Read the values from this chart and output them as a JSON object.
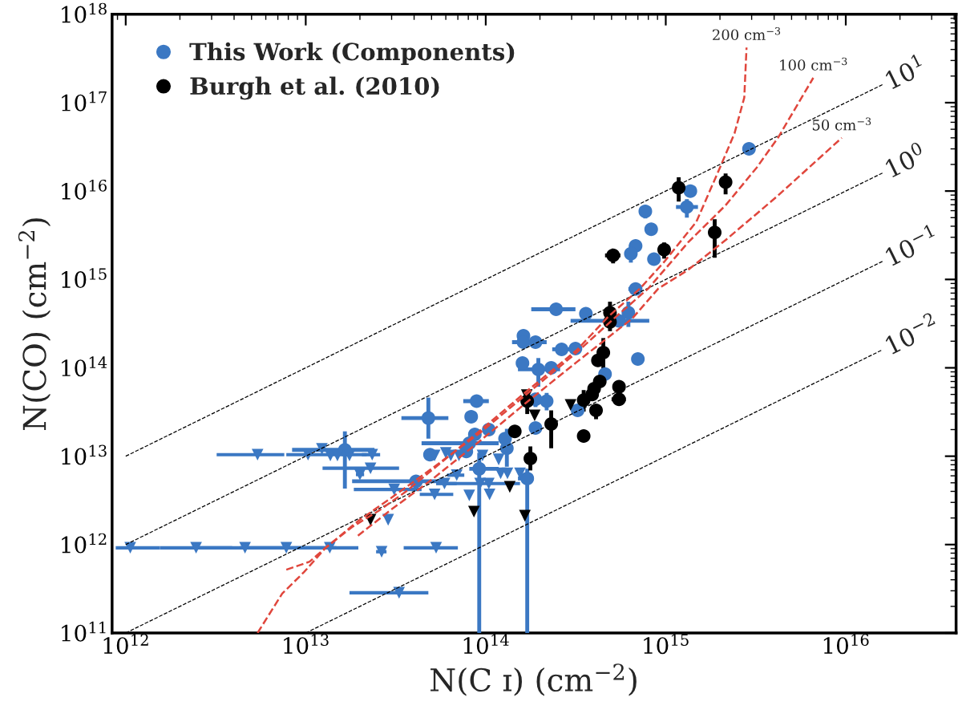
{
  "chart_data": {
    "type": "scatter",
    "xlabel": "N(C ɪ) (cm$^{−2}$)",
    "ylabel": "N(CO) (cm$^{−2}$)",
    "log": "xy",
    "grid": false,
    "legend": "top left",
    "annotations": [
      {
        "text": "10$^{1}$",
        "x": 1.6e+16,
        "y": 1.6e+17
      },
      {
        "text": "10$^{0}$",
        "x": 1.6e+16,
        "y": 1.6e+16
      },
      {
        "text": "10$^{−1}$",
        "x": 1.6e+16,
        "y": 1600000000000000.0
      },
      {
        "text": "10$^{−2}$",
        "x": 1.6e+16,
        "y": 160000000000000.0
      },
      {
        "text": "200 cm$^{−3}$",
        "x": 2810000000000000.0,
        "y": 4.2e+17
      },
      {
        "text": "100 cm$^{−3}$",
        "x": 6600000000000000.0,
        "y": 1.91e+17
      },
      {
        "text": "50 cm$^{−3}$",
        "x": 9500000000000000.0,
        "y": 4e+16
      }
    ],
    "xlim": [
      840000000000.0,
      4.1e+16
    ],
    "ylim": [
      100000000000.0,
      1e+18
    ],
    "xticks": [
      {
        "value": 1000000000000.0,
        "label": "10$^{12}$"
      },
      {
        "value": 10000000000000.0,
        "label": "10$^{13}$"
      },
      {
        "value": 100000000000000.0,
        "label": "10$^{14}$"
      },
      {
        "value": 1000000000000000.0,
        "label": "10$^{15}$"
      },
      {
        "value": 1e+16,
        "label": "10$^{16}$"
      }
    ],
    "yticks": [
      {
        "value": 100000000000.0,
        "label": "10$^{11}$"
      },
      {
        "value": 1000000000000.0,
        "label": "10$^{12}$"
      },
      {
        "value": 10000000000000.0,
        "label": "10$^{13}$"
      },
      {
        "value": 100000000000000.0,
        "label": "10$^{14}$"
      },
      {
        "value": 1000000000000000.0,
        "label": "10$^{15}$"
      },
      {
        "value": 1e+16,
        "label": "10$^{16}$"
      },
      {
        "value": 1e+17,
        "label": "10$^{17}$"
      },
      {
        "value": 1e+18,
        "label": "10$^{18}$"
      }
    ],
    "series": [
      {
        "type": "line",
        "color": "#000000",
        "line_style": "dashed",
        "marker": "none",
        "x": [
          1000000000000.0,
          1.6e+16
        ],
        "values": [
          10000000000000.0,
          1.6e+17
        ]
      },
      {
        "type": "line",
        "color": "#000000",
        "line_style": "dashed",
        "marker": "none",
        "x": [
          1000000000000.0,
          1.6e+16
        ],
        "values": [
          1000000000000.0,
          1.6e+16
        ]
      },
      {
        "type": "line",
        "color": "#000000",
        "line_style": "dashed",
        "marker": "none",
        "x": [
          1000000000000.0,
          1.6e+16
        ],
        "values": [
          100000000000.0,
          1600000000000000.0
        ]
      },
      {
        "type": "line",
        "color": "#000000",
        "line_style": "dashed",
        "marker": "none",
        "x": [
          10000000000000.0,
          1.6e+16
        ],
        "values": [
          100000000000.0,
          160000000000000.0
        ]
      },
      {
        "type": "line",
        "color": "#e0463c",
        "line_style": "dashed",
        "marker": "none",
        "x": [
          5400000000000.0,
          7400000000000.0,
          9800000000000.0,
          12900000000000.0,
          18100000000000.0,
          25400000000000.0,
          36000000000000.0,
          50000000000000.0,
          93000000000000.0,
          172000000000000.0,
          320000000000000.0,
          480000000000000.0,
          720000000000000.0,
          980000000000000.0,
          1480000000000000.0,
          2000000000000000.0,
          2410000000000000.0,
          2730000000000000.0,
          2810000000000000.0
        ],
        "values": [
          100000000000.0,
          279000000000.0,
          490000000000.0,
          920000000000.0,
          1580000000000.0,
          2410000000000.0,
          3980000000000.0,
          6900000000000.0,
          19500000000000.0,
          56000000000000.0,
          158000000000000.0,
          380000000000000.0,
          790000000000000.0,
          1580000000000000.0,
          4500000000000000.0,
          1.84e+16,
          4.5e+16,
          1.14e+17,
          4.2e+17
        ]
      },
      {
        "type": "line",
        "color": "#e0463c",
        "line_style": "dashed",
        "marker": "none",
        "x": [
          7800000000000.0,
          10500000000000.0,
          12900000000000.0,
          19500000000000.0,
          30000000000000.0,
          50000000000000.0,
          93000000000000.0,
          172000000000000.0,
          320000000000000.0,
          530000000000000.0,
          800000000000000.0,
          1330000000000000.0,
          2150000000000000.0,
          3200000000000000.0,
          4200000000000000.0,
          6600000000000000.0
        ],
        "values": [
          520000000000.0,
          640000000000.0,
          920000000000.0,
          1840000000000.0,
          3400000000000.0,
          7200000000000.0,
          18400000000000.0,
          52000000000000.0,
          149000000000000.0,
          380000000000000.0,
          790000000000000.0,
          2620000000000000.0,
          6900000000000000.0,
          1.84e+16,
          4e+16,
          1.91e+17
        ]
      },
      {
        "type": "line",
        "color": "#e0463c",
        "line_style": "dashed",
        "marker": "none",
        "x": [
          19500000000000.0,
          30000000000000.0,
          50000000000000.0,
          93000000000000.0,
          172000000000000.0,
          320000000000000.0,
          650000000000000.0,
          910000000000000.0,
          1330000000000000.0,
          2150000000000000.0,
          4100000000000000.0,
          9500000000000000.0
        ],
        "values": [
          1260000000000.0,
          2510000000000.0,
          5400000000000.0,
          14900000000000.0,
          42000000000000.0,
          116000000000000.0,
          360000000000000.0,
          790000000000000.0,
          1280000000000000.0,
          2790000000000000.0,
          8500000000000000.0,
          4e+16
        ]
      },
      {
        "name": "This Work (Components)",
        "color": "#3b78c3",
        "marker": "circle",
        "x": [
          2900000000000000.0,
          1370000000000000.0,
          1310000000000000.0,
          770000000000000.0,
          830000000000000.0,
          680000000000000.0,
          640000000000000.0,
          860000000000000.0,
          680000000000000.0,
          246000000000000.0,
          360000000000000.0,
          550000000000000.0,
          620000000000000.0,
          162000000000000.0,
          162000000000000.0,
          189000000000000.0,
          264000000000000.0,
          315000000000000.0,
          160000000000000.0,
          196000000000000.0,
          231000000000000.0,
          700000000000000.0,
          460000000000000.0,
          324000000000000.0,
          189000000000000.0,
          218000000000000.0,
          189000000000000.0,
          89000000000000.0,
          83000000000000.0,
          48000000000000.0,
          104000000000000.0,
          87000000000000.0,
          131000000000000.0,
          128000000000000.0,
          81000000000000.0,
          78000000000000.0,
          49000000000000.0,
          92000000000000.0,
          41000000000000.0,
          170000000000000.0,
          16500000000000.0
        ],
        "values": [
          3e+16,
          1e+16,
          6600000000000000.0,
          5900000000000000.0,
          3700000000000000.0,
          2400000000000000.0,
          1950000000000000.0,
          1700000000000000.0,
          780000000000000.0,
          460000000000000.0,
          410000000000000.0,
          340000000000000.0,
          420000000000000.0,
          230000000000000.0,
          195000000000000.0,
          195000000000000.0,
          162000000000000.0,
          165000000000000.0,
          113000000000000.0,
          96000000000000.0,
          100000000000000.0,
          126000000000000.0,
          85000000000000.0,
          33000000000000.0,
          44000000000000.0,
          42000000000000.0,
          20800000000000.0,
          42000000000000.0,
          28000000000000.0,
          27000000000000.0,
          20000000000000.0,
          17600000000000.0,
          12300000000000.0,
          15800000000000.0,
          14000000000000.0,
          11300000000000.0,
          10400000000000.0,
          7200000000000.0,
          5200000000000.0,
          5600000000000.0,
          11800000000000.0
        ],
        "xerrors": [
          null,
          null,
          [
            1140000000000000.0,
            1510000000000000.0
          ],
          null,
          null,
          null,
          null,
          null,
          [
            620000000000000.0,
            740000000000000.0
          ],
          [
            179000000000000.0,
            315000000000000.0
          ],
          null,
          [
            296000000000000.0,
            810000000000000.0
          ],
          null,
          null,
          null,
          [
            140000000000000.0,
            218000000000000.0
          ],
          [
            234000000000000.0,
            296000000000000.0
          ],
          null,
          null,
          [
            151000000000000.0,
            259000000000000.0
          ],
          null,
          null,
          null,
          null,
          null,
          null,
          null,
          [
            75000000000000.0,
            104000000000000.0
          ],
          null,
          [
            34000000000000.0,
            62000000000000.0
          ],
          null,
          null,
          null,
          null,
          [
            44000000000000.0,
            118000000000000.0
          ],
          null,
          null,
          [
            81000000000000.0,
            118000000000000.0
          ],
          [
            18100000000000.0,
            60000000000000.0
          ],
          [
            151000000000000.0,
            185000000000000.0
          ],
          [
            8400000000000.0,
            24100000000000.0
          ]
        ],
        "errors": [
          null,
          null,
          [
            5000000000000000.0,
            8100000000000000.0
          ],
          [
            4900000000000000.0,
            6900000000000000.0
          ],
          null,
          null,
          [
            1550000000000000.0,
            2450000000000000.0
          ],
          null,
          null,
          null,
          null,
          null,
          [
            290000000000000.0,
            560000000000000.0
          ],
          null,
          null,
          null,
          null,
          null,
          null,
          [
            61000000000000.0,
            129000000000000.0
          ],
          null,
          null,
          null,
          null,
          [
            36000000000000.0,
            52000000000000.0
          ],
          [
            33000000000000.0,
            52000000000000.0
          ],
          null,
          null,
          null,
          [
            15800000000000.0,
            46000000000000.0
          ],
          null,
          null,
          [
            7600000000000.0,
            20400000000000.0
          ],
          null,
          null,
          null,
          null,
          [
            100000000000.0,
            10900000000000.0
          ],
          null,
          [
            100000000000.0,
            7200000000000.0
          ],
          [
            4300000000000.0,
            19100000000000.0
          ]
        ]
      },
      {
        "color": "#3b78c3",
        "marker": "triangle",
        "x": [
          5400000000000.0,
          10300000000000.0,
          12300000000000.0,
          13700000000000.0,
          15000000000000.0,
          23400000000000.0,
          22900000000000.0,
          20000000000000.0,
          31000000000000.0,
          28700000000000.0,
          1060000000000.0,
          2460000000000.0,
          4600000000000.0,
          7800000000000.0,
          13600000000000.0,
          26400000000000.0,
          53000000000000.0,
          33000000000000.0,
          52000000000000.0,
          59000000000000.0,
          69000000000000.0,
          52000000000000.0,
          60000000000000.0,
          64000000000000.0,
          71000000000000.0,
          96000000000000.0,
          118000000000000.0,
          121000000000000.0,
          132000000000000.0,
          155000000000000.0,
          104000000000000.0,
          105000000000000.0,
          81000000000000.0,
          93000000000000.0,
          17500000000000.0
        ],
        "values": [
          10400000000000.0,
          10400000000000.0,
          12100000000000.0,
          10200000000000.0,
          10200000000000.0,
          10400000000000.0,
          7300000000000.0,
          6200000000000.0,
          4200000000000.0,
          1910000000000.0,
          920000000000.0,
          920000000000.0,
          920000000000.0,
          920000000000.0,
          920000000000.0,
          830000000000.0,
          920000000000.0,
          285000000000.0,
          3700000000000.0,
          4900000000000.0,
          6100000000000.0,
          10200000000000.0,
          10900000000000.0,
          10200000000000.0,
          10200000000000.0,
          10200000000000.0,
          9200000000000.0,
          6400000000000.0,
          6400000000000.0,
          6400000000000.0,
          4900000000000.0,
          3700000000000.0,
          3600000000000.0,
          4900000000000.0,
          10200000000000.0
        ],
        "xerrors": [
          [
            3200000000000.0,
            7600000000000.0
          ],
          [
            7800000000000.0,
            21800000000000.0
          ],
          null,
          null,
          null,
          [
            20500000000000.0,
            25900000000000.0
          ],
          [
            12400000000000.0,
            33000000000000.0
          ],
          [
            19000000000000.0,
            21100000000000.0
          ],
          [
            18500000000000.0,
            44000000000000.0
          ],
          null,
          [
            880000000000.0,
            1550000000000.0
          ],
          [
            1550000000000.0,
            3900000000000.0
          ],
          [
            2590000000000.0,
            8000000000000.0
          ],
          [
            4300000000000.0,
            14800000000000.0
          ],
          [
            8000000000000.0,
            19600000000000.0
          ],
          [
            24600000000000.0,
            28100000000000.0
          ],
          [
            35000000000000.0,
            70000000000000.0
          ],
          [
            17500000000000.0,
            48000000000000.0
          ],
          [
            43000000000000.0,
            66000000000000.0
          ],
          [
            53000000000000.0,
            69000000000000.0
          ],
          [
            61000000000000.0,
            76000000000000.0
          ],
          null,
          null,
          null,
          null,
          null,
          null,
          null,
          null,
          null,
          null,
          null,
          null,
          [
            60000000000000.0,
            155000000000000.0
          ],
          null
        ]
      },
      {
        "name": "Burgh et al. (2010)",
        "color": "#000000",
        "marker": "circle",
        "x": [
          1180000000000000.0,
          2150000000000000.0,
          1870000000000000.0,
          510000000000000.0,
          980000000000000.0,
          490000000000000.0,
          490000000000000.0,
          450000000000000.0,
          420000000000000.0,
          430000000000000.0,
          400000000000000.0,
          390000000000000.0,
          550000000000000.0,
          550000000000000.0,
          350000000000000.0,
          410000000000000.0,
          350000000000000.0,
          170000000000000.0,
          231000000000000.0,
          145000000000000.0,
          177000000000000.0
        ],
        "values": [
          1.09e+16,
          1.26e+16,
          3400000000000000.0,
          1870000000000000.0,
          2170000000000000.0,
          420000000000000.0,
          330000000000000.0,
          149000000000000.0,
          121000000000000.0,
          70000000000000.0,
          58000000000000.0,
          50000000000000.0,
          61000000000000.0,
          44000000000000.0,
          43000000000000.0,
          33000000000000.0,
          16900000000000.0,
          42000000000000.0,
          23100000000000.0,
          19100000000000.0,
          9400000000000.0
        ],
        "xerrors": [
          null,
          null,
          null,
          [
            460000000000000.0,
            560000000000000.0
          ],
          null,
          null,
          null,
          null,
          null,
          null,
          null,
          null,
          null,
          [
            500000000000000.0,
            600000000000000.0
          ],
          null,
          null,
          null,
          null,
          null,
          null,
          null
        ],
        "errors": [
          [
            7600000000000000.0,
            1.43e+16
          ],
          [
            9200000000000000.0,
            1.58e+16
          ],
          [
            1760000000000000.0,
            4800000000000000.0
          ],
          [
            1520000000000000.0,
            2170000000000000.0
          ],
          [
            1720000000000000.0,
            2620000000000000.0
          ],
          [
            260000000000000.0,
            560000000000000.0
          ],
          null,
          [
            98000000000000.0,
            217000000000000.0
          ],
          null,
          null,
          null,
          null,
          [
            50000000000000.0,
            72000000000000.0
          ],
          null,
          [
            32000000000000.0,
            56000000000000.0
          ],
          [
            26200000000000.0,
            38000000000000.0
          ],
          null,
          [
            30000000000000.0,
            52000000000000.0
          ],
          [
            12300000000000.0,
            33000000000000.0
          ],
          null,
          [
            6900000000000.0,
            12900000000000.0
          ]
        ]
      },
      {
        "color": "#000000",
        "marker": "triangle",
        "x": [
          22900000000000.0,
          86000000000000.0,
          136000000000000.0,
          165000000000000.0,
          187000000000000.0,
          296000000000000.0,
          169000000000000.0
        ],
        "values": [
          1910000000000.0,
          2360000000000.0,
          4500000000000.0,
          2120000000000.0,
          29000000000000.0,
          38000000000000.0,
          49000000000000.0
        ]
      }
    ]
  }
}
